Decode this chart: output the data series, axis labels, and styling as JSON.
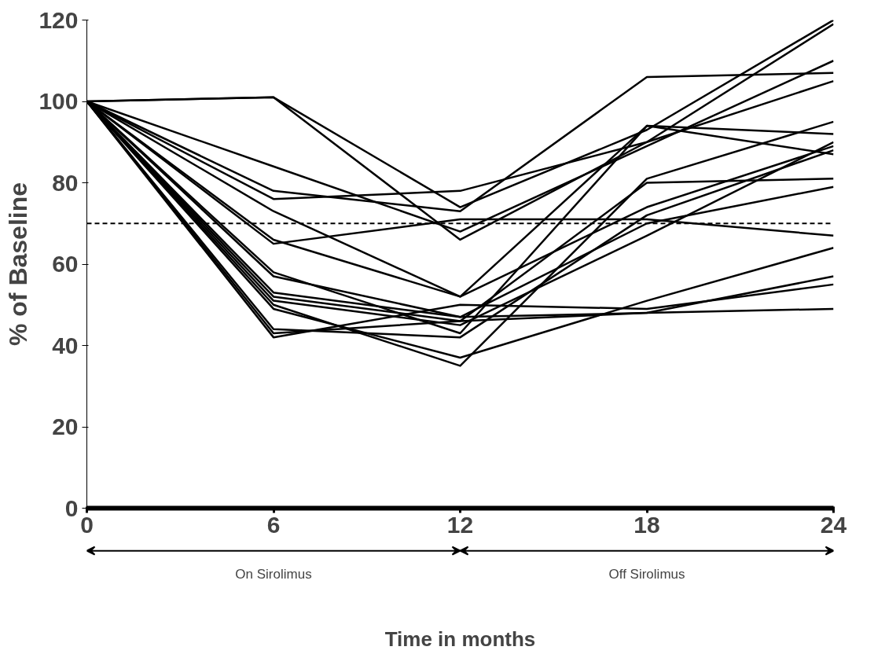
{
  "chart_data": {
    "type": "line",
    "xlabel": "Time in months",
    "ylabel": "% of Baseline",
    "x": [
      0,
      6,
      12,
      18,
      24
    ],
    "xlim": [
      0,
      24
    ],
    "xticks": [
      0,
      6,
      12,
      18,
      24
    ],
    "ylim": [
      0,
      120
    ],
    "yticks": [
      0,
      20,
      40,
      60,
      80,
      100,
      120
    ],
    "grid": false,
    "marker": "none",
    "line_style": "solid",
    "series": [
      {
        "color": "#000000",
        "values": [
          100,
          101,
          74,
          93,
          120
        ]
      },
      {
        "color": "#000000",
        "values": [
          100,
          101,
          66,
          90,
          119
        ]
      },
      {
        "color": "#000000",
        "values": [
          100,
          78,
          73,
          106,
          107
        ]
      },
      {
        "color": "#000000",
        "values": [
          100,
          84,
          68,
          89,
          110
        ]
      },
      {
        "color": "#000000",
        "values": [
          100,
          76,
          78,
          90,
          105
        ]
      },
      {
        "color": "#000000",
        "values": [
          100,
          58,
          43,
          94,
          92
        ]
      },
      {
        "color": "#000000",
        "values": [
          100,
          50,
          35,
          81,
          95
        ]
      },
      {
        "color": "#000000",
        "values": [
          100,
          52,
          46,
          80,
          81
        ]
      },
      {
        "color": "#000000",
        "values": [
          100,
          73,
          52,
          74,
          89
        ]
      },
      {
        "color": "#000000",
        "values": [
          100,
          66,
          52,
          94,
          87
        ]
      },
      {
        "color": "#000000",
        "values": [
          100,
          65,
          71,
          71,
          67
        ]
      },
      {
        "color": "#000000",
        "values": [
          100,
          57,
          47,
          70,
          79
        ]
      },
      {
        "color": "#000000",
        "values": [
          100,
          51,
          45,
          67,
          90
        ]
      },
      {
        "color": "#000000",
        "values": [
          100,
          44,
          42,
          72,
          88
        ]
      },
      {
        "color": "#000000",
        "values": [
          100,
          49,
          37,
          51,
          64
        ]
      },
      {
        "color": "#000000",
        "values": [
          100,
          43,
          46,
          48,
          57
        ]
      },
      {
        "color": "#000000",
        "values": [
          100,
          42,
          50,
          49,
          55
        ]
      },
      {
        "color": "#000000",
        "values": [
          100,
          53,
          47,
          48,
          49
        ]
      }
    ],
    "ref_lines": [
      {
        "axis": "y",
        "value": 70,
        "color": "#000000",
        "line_style": "dashed"
      }
    ],
    "annotations": [
      "On Sirolimus",
      "Off Sirolimus"
    ]
  }
}
